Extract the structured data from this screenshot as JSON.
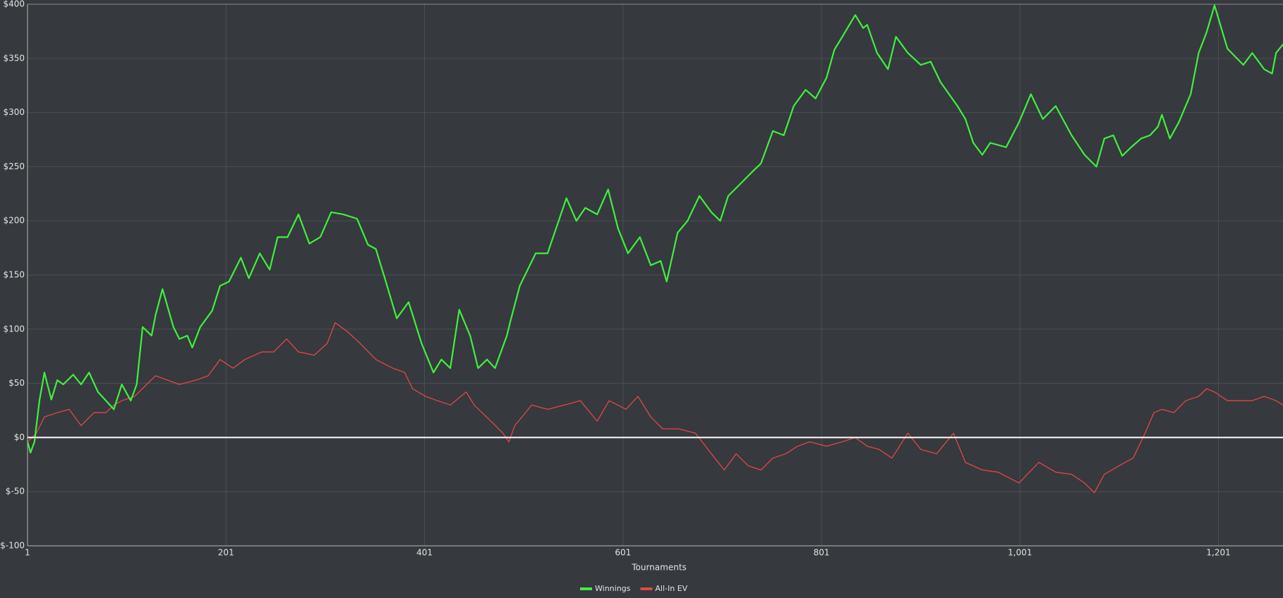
{
  "chart_data": {
    "type": "line",
    "x_label": "Tournaments",
    "xlim": [
      1,
      1266
    ],
    "ylim": [
      -100,
      400
    ],
    "xticks": [
      1,
      201,
      401,
      601,
      801,
      {
        "value": 1001,
        "label": "1,001"
      },
      {
        "value": 1201,
        "label": "1,201"
      }
    ],
    "yticks": [
      {
        "value": -100,
        "label": "$-100"
      },
      {
        "value": -50,
        "label": "$-50"
      },
      {
        "value": 0,
        "label": "$0"
      },
      {
        "value": 50,
        "label": "$50"
      },
      {
        "value": 100,
        "label": "$100"
      },
      {
        "value": 150,
        "label": "$150"
      },
      {
        "value": 200,
        "label": "$200"
      },
      {
        "value": 250,
        "label": "$250"
      },
      {
        "value": 300,
        "label": "$300"
      },
      {
        "value": 350,
        "label": "$350"
      },
      {
        "value": 400,
        "label": "$400"
      }
    ],
    "grid": true,
    "zero_line": true,
    "legend": "bottom",
    "series": [
      {
        "name": "Winnings",
        "color": "#3ff03f",
        "x": [
          1,
          4,
          8,
          13,
          18,
          25,
          31,
          37,
          47,
          55,
          63,
          72,
          80,
          88,
          96,
          105,
          111,
          117,
          126,
          130,
          137,
          148,
          154,
          162,
          167,
          175,
          187,
          195,
          204,
          216,
          224,
          235,
          245,
          253,
          263,
          274,
          285,
          296,
          307,
          319,
          333,
          344,
          352,
          361,
          373,
          385,
          398,
          410,
          418,
          427,
          436,
          447,
          455,
          464,
          472,
          484,
          488,
          497,
          513,
          525,
          544,
          554,
          563,
          575,
          586,
          596,
          606,
          618,
          629,
          639,
          645,
          656,
          666,
          678,
          690,
          699,
          707,
          719,
          732,
          740,
          752,
          763,
          773,
          785,
          795,
          806,
          814,
          822,
          835,
          843,
          847,
          857,
          868,
          876,
          888,
          901,
          911,
          921,
          938,
          946,
          954,
          963,
          971,
          987,
          1000,
          1012,
          1024,
          1037,
          1053,
          1066,
          1078,
          1086,
          1095,
          1104,
          1113,
          1123,
          1132,
          1140,
          1144,
          1152,
          1161,
          1173,
          1181,
          1189,
          1197,
          1210,
          1226,
          1235,
          1247,
          1255,
          1259,
          1266
        ],
        "values": [
          -4,
          -14,
          -4,
          34,
          60,
          35,
          53,
          49,
          58,
          49,
          60,
          42,
          34,
          26,
          49,
          34,
          49,
          102,
          94,
          113,
          137,
          102,
          91,
          94,
          83,
          102,
          117,
          140,
          144,
          166,
          147,
          170,
          155,
          185,
          185,
          206,
          179,
          185,
          208,
          206,
          202,
          178,
          174,
          147,
          110,
          125,
          87,
          60,
          72,
          64,
          118,
          94,
          64,
          72,
          64,
          94,
          109,
          140,
          170,
          170,
          221,
          200,
          212,
          206,
          229,
          193,
          170,
          185,
          159,
          163,
          144,
          189,
          200,
          223,
          208,
          200,
          223,
          234,
          246,
          253,
          283,
          279,
          306,
          321,
          313,
          332,
          358,
          370,
          390,
          378,
          381,
          355,
          340,
          370,
          355,
          344,
          347,
          328,
          306,
          294,
          272,
          261,
          272,
          268,
          291,
          317,
          294,
          306,
          279,
          261,
          250,
          276,
          279,
          260,
          268,
          276,
          279,
          287,
          298,
          276,
          291,
          317,
          355,
          374,
          399,
          359,
          344,
          355,
          340,
          336,
          355,
          363
        ]
      },
      {
        "name": "All-In EV",
        "color": "#e04848",
        "x": [
          1,
          10,
          18,
          31,
          43,
          55,
          68,
          80,
          88,
          96,
          109,
          121,
          130,
          142,
          154,
          171,
          183,
          195,
          208,
          220,
          237,
          249,
          262,
          274,
          290,
          303,
          311,
          323,
          336,
          352,
          369,
          381,
          389,
          402,
          414,
          427,
          443,
          451,
          468,
          480,
          486,
          492,
          509,
          525,
          542,
          558,
          575,
          587,
          604,
          616,
          629,
          641,
          657,
          674,
          690,
          703,
          715,
          727,
          740,
          752,
          765,
          777,
          789,
          806,
          822,
          835,
          847,
          859,
          872,
          888,
          901,
          917,
          934,
          946,
          963,
          979,
          1000,
          1020,
          1037,
          1053,
          1066,
          1076,
          1086,
          1103,
          1115,
          1127,
          1136,
          1144,
          1156,
          1168,
          1181,
          1189,
          1197,
          1210,
          1222,
          1235,
          1247,
          1259,
          1266
        ],
        "values": [
          -4,
          4,
          19,
          23,
          26,
          11,
          23,
          23,
          30,
          34,
          38,
          49,
          57,
          53,
          49,
          53,
          57,
          72,
          64,
          72,
          79,
          79,
          91,
          79,
          76,
          87,
          106,
          98,
          87,
          72,
          64,
          60,
          45,
          38,
          34,
          30,
          42,
          30,
          15,
          4,
          -4,
          11,
          30,
          26,
          30,
          34,
          15,
          34,
          26,
          38,
          19,
          8,
          8,
          4,
          -15,
          -30,
          -15,
          -26,
          -30,
          -19,
          -15,
          -8,
          -4,
          -8,
          -4,
          0,
          -8,
          -11,
          -19,
          4,
          -11,
          -15,
          4,
          -23,
          -30,
          -32,
          -42,
          -23,
          -32,
          -34,
          -42,
          -51,
          -34,
          -25,
          -19,
          4,
          23,
          26,
          23,
          34,
          38,
          45,
          42,
          34,
          34,
          34,
          38,
          34,
          30
        ]
      }
    ]
  }
}
